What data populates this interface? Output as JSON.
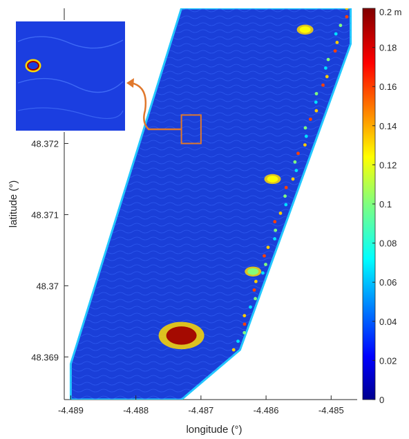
{
  "chart_data": {
    "type": "heatmap",
    "title": "",
    "xlabel": "longitude (°)",
    "ylabel": "latitude (°)",
    "x_ticks": [
      "-4.489",
      "-4.488",
      "-4.487",
      "-4.486",
      "-4.485"
    ],
    "y_ticks": [
      "48.369",
      "48.37",
      "48.371",
      "48.372"
    ],
    "xlim": [
      -4.4891,
      -4.4846
    ],
    "ylim": [
      48.3684,
      48.3739
    ],
    "colorbar": {
      "unit_label": "0.2 m",
      "ticks": [
        "0",
        "0.02",
        "0.04",
        "0.06",
        "0.08",
        "0.1",
        "0.12",
        "0.14",
        "0.16",
        "0.18"
      ],
      "range": [
        0,
        0.2
      ],
      "colormap": "jet"
    },
    "footprint": [
      [
        -4.489,
        48.3684
      ],
      [
        -4.489,
        48.3689
      ],
      [
        -4.4873,
        48.3739
      ],
      [
        -4.4847,
        48.3739
      ],
      [
        -4.4847,
        48.3734
      ],
      [
        -4.4864,
        48.3691
      ],
      [
        -4.4873,
        48.3684
      ]
    ],
    "hotspots": [
      {
        "lon": -4.4873,
        "lat": 48.3693,
        "value": 0.2
      },
      {
        "lon": -4.4854,
        "lat": 48.3736,
        "value": 0.14
      },
      {
        "lon": -4.4859,
        "lat": 48.3715,
        "value": 0.12
      },
      {
        "lon": -4.4862,
        "lat": 48.3702,
        "value": 0.1
      }
    ],
    "inset": {
      "zoom_box": {
        "lon": [
          -4.4873,
          -4.487
        ],
        "lat": [
          48.372,
          48.3724
        ]
      },
      "arrow_color": "#e0782c"
    },
    "grid": false
  }
}
